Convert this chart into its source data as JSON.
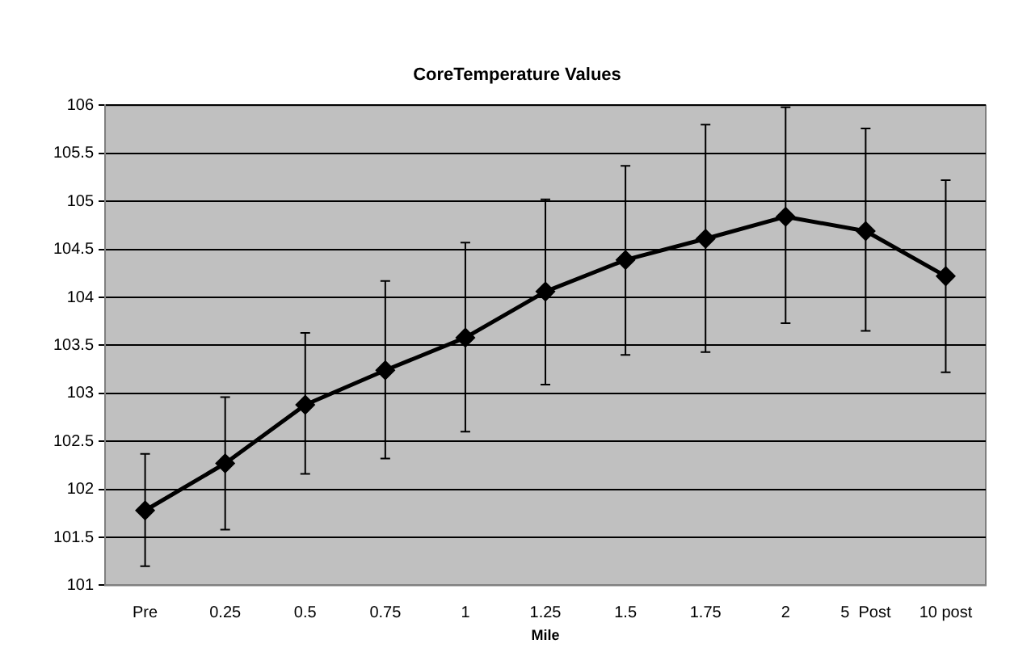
{
  "chart_data": {
    "type": "line",
    "title": "CoreTemperature Values",
    "xlabel": "Mile",
    "categories": [
      "Pre",
      "0.25",
      "0.5",
      "0.75",
      "1",
      "1.25",
      "1.5",
      "1.75",
      "2",
      "5  Post",
      "10 post"
    ],
    "series": [
      {
        "color": "#000000",
        "values": [
          101.78,
          102.27,
          102.88,
          103.24,
          103.58,
          104.06,
          104.39,
          104.61,
          104.84,
          104.69,
          104.22
        ],
        "errors": [
          [
            101.2,
            102.37
          ],
          [
            101.58,
            102.96
          ],
          [
            102.16,
            103.63
          ],
          [
            102.32,
            104.17
          ],
          [
            102.6,
            104.57
          ],
          [
            103.09,
            105.02
          ],
          [
            103.4,
            105.37
          ],
          [
            103.43,
            105.8
          ],
          [
            103.73,
            105.98
          ],
          [
            103.65,
            105.76
          ],
          [
            103.22,
            105.22
          ]
        ]
      }
    ],
    "ylim": [
      101,
      106
    ],
    "yticks": [
      101,
      101.5,
      102,
      102.5,
      103,
      103.5,
      104,
      104.5,
      105,
      105.5,
      106
    ],
    "grid": "y",
    "legend": false,
    "marker": "diamond",
    "line_style": "solid"
  }
}
